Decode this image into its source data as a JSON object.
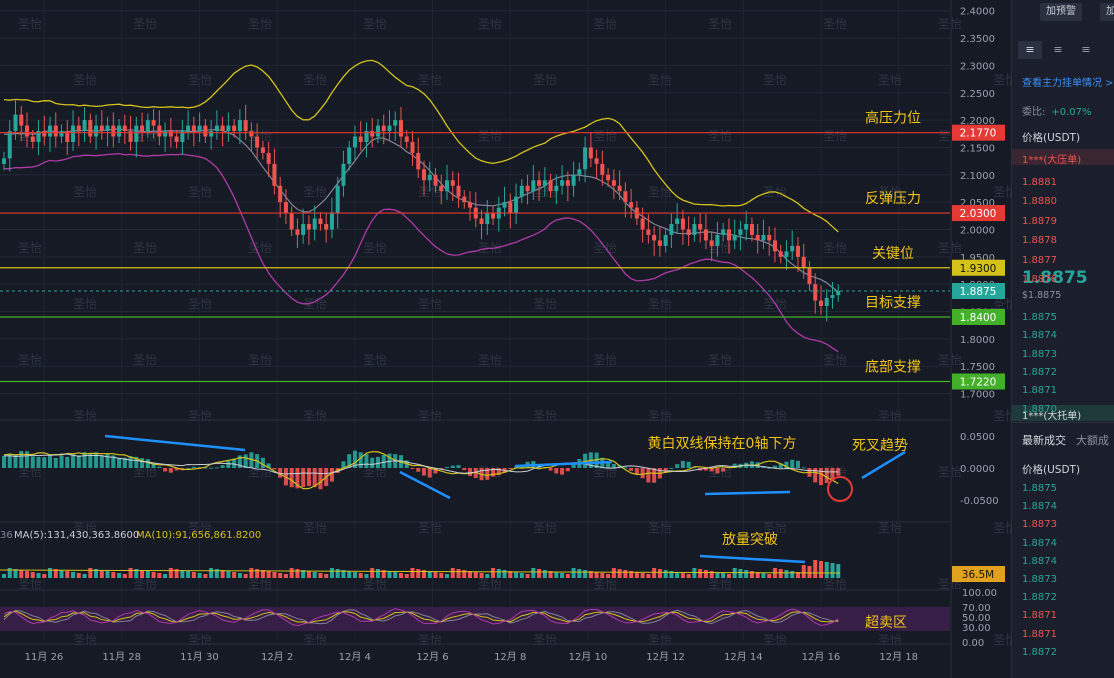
{
  "chart_data": {
    "type": "candlestick",
    "price_axis": {
      "ticks": [
        "2.4000",
        "2.3500",
        "2.3000",
        "2.2500",
        "2.2000",
        "2.1500",
        "2.1000",
        "2.0500",
        "2.0000",
        "1.9500",
        "1.9000",
        "1.8500",
        "1.8000",
        "1.7500",
        "1.7000"
      ],
      "min": 1.69,
      "max": 2.405
    },
    "macd_axis": {
      "ticks": [
        "0.0500",
        "0.0000",
        "-0.0500"
      ]
    },
    "rsi_axis": {
      "ticks": [
        "100.00",
        "70.00",
        "50.00",
        "30.00",
        "0.00"
      ]
    },
    "x_ticks": [
      "11月 26",
      "11月 28",
      "11月 30",
      "12月 2",
      "12月 4",
      "12月 6",
      "12月 8",
      "12月 10",
      "12月 12",
      "12月 14",
      "12月 16",
      "12月 18"
    ],
    "levels": [
      {
        "price": 2.177,
        "label": "2.1770",
        "annotation": "高压力位",
        "color": "#e53935"
      },
      {
        "price": 2.03,
        "label": "2.0300",
        "annotation": "反弹压力",
        "color": "#e53935"
      },
      {
        "price": 1.93,
        "label": "1.9300",
        "annotation": "关键位",
        "color": "#d4c21a"
      },
      {
        "price": 1.84,
        "label": "1.8400",
        "annotation": "目标支撑",
        "color": "#43b02a"
      },
      {
        "price": 1.722,
        "label": "1.7220",
        "annotation": "底部支撑",
        "color": "#43b02a"
      }
    ],
    "current_price_label": "1.8875",
    "volume_label": "36.5M",
    "ma_legend": {
      "prefix": "36",
      "ma5": "MA(5):131,430,363.8600",
      "ma10": "MA(10):91,656,861.8200"
    },
    "annotations": {
      "macd_note": "黄白双线保持在0轴下方",
      "death_cross": "死叉趋势",
      "volume_break": "放量突破",
      "oversold": "超卖区"
    },
    "closes": [
      2.13,
      2.18,
      2.21,
      2.19,
      2.17,
      2.16,
      2.18,
      2.17,
      2.19,
      2.17,
      2.18,
      2.16,
      2.19,
      2.18,
      2.2,
      2.17,
      2.19,
      2.18,
      2.19,
      2.17,
      2.19,
      2.18,
      2.16,
      2.19,
      2.18,
      2.2,
      2.19,
      2.17,
      2.18,
      2.17,
      2.16,
      2.18,
      2.19,
      2.18,
      2.19,
      2.17,
      2.18,
      2.19,
      2.18,
      2.19,
      2.18,
      2.2,
      2.18,
      2.17,
      2.15,
      2.14,
      2.12,
      2.08,
      2.05,
      2.03,
      2.0,
      1.99,
      2.01,
      2.0,
      2.02,
      2.01,
      2.0,
      2.03,
      2.08,
      2.12,
      2.15,
      2.17,
      2.16,
      2.18,
      2.17,
      2.19,
      2.18,
      2.19,
      2.2,
      2.17,
      2.16,
      2.14,
      2.11,
      2.09,
      2.1,
      2.08,
      2.07,
      2.09,
      2.08,
      2.06,
      2.05,
      2.04,
      2.02,
      2.01,
      2.03,
      2.02,
      2.04,
      2.05,
      2.03,
      2.06,
      2.08,
      2.07,
      2.09,
      2.08,
      2.09,
      2.07,
      2.08,
      2.09,
      2.08,
      2.1,
      2.11,
      2.15,
      2.13,
      2.12,
      2.1,
      2.09,
      2.08,
      2.07,
      2.05,
      2.04,
      2.02,
      2.0,
      1.99,
      1.98,
      1.97,
      1.99,
      2.01,
      2.02,
      2.0,
      1.99,
      2.01,
      2.0,
      1.98,
      1.97,
      1.99,
      2.0,
      1.98,
      1.99,
      2.0,
      2.01,
      1.99,
      1.98,
      1.99,
      1.98,
      1.96,
      1.95,
      1.96,
      1.97,
      1.95,
      1.93,
      1.9,
      1.87,
      1.86,
      1.875,
      1.88,
      1.8875
    ]
  }
}
